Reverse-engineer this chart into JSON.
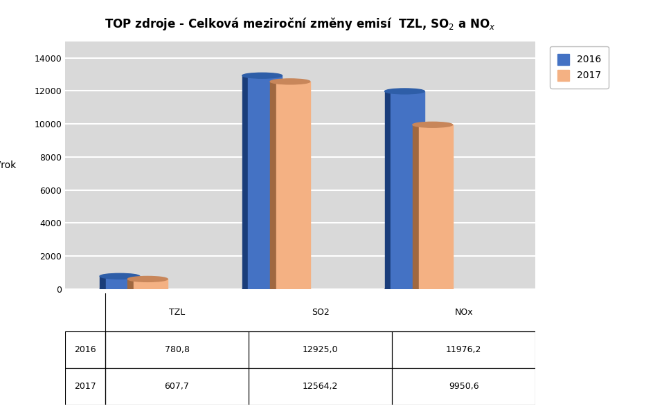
{
  "title": "TOP zdroje - Celková meziroční změny emisí  TZL, SO$_2$ a NO$_x$",
  "categories": [
    "TZL",
    "SO2",
    "NOx"
  ],
  "values_2016": [
    780.8,
    12925.0,
    11976.2
  ],
  "values_2017": [
    607.7,
    12564.2,
    9950.6
  ],
  "color_2016": "#4472C4",
  "color_2017": "#F4B183",
  "color_2016_dark": "#1A3D7A",
  "color_2017_dark": "#A06840",
  "color_2016_top": "#2E5EA8",
  "color_2017_top": "#C8865A",
  "ylabel": "t/rok",
  "ylim": [
    0,
    15000
  ],
  "yticks": [
    0,
    2000,
    4000,
    6000,
    8000,
    10000,
    12000,
    14000
  ],
  "bg_color": "#D9D9D9",
  "grid_color": "#FFFFFF",
  "bar_width": 0.28,
  "table_header": [
    "",
    "TZL",
    "SO2",
    "NOx"
  ],
  "table_row1_label": "2016",
  "table_row2_label": "2017",
  "table_row1": [
    "780,8",
    "12925,0",
    "11976,2"
  ],
  "table_row2": [
    "607,7",
    "12564,2",
    "9950,6"
  ]
}
